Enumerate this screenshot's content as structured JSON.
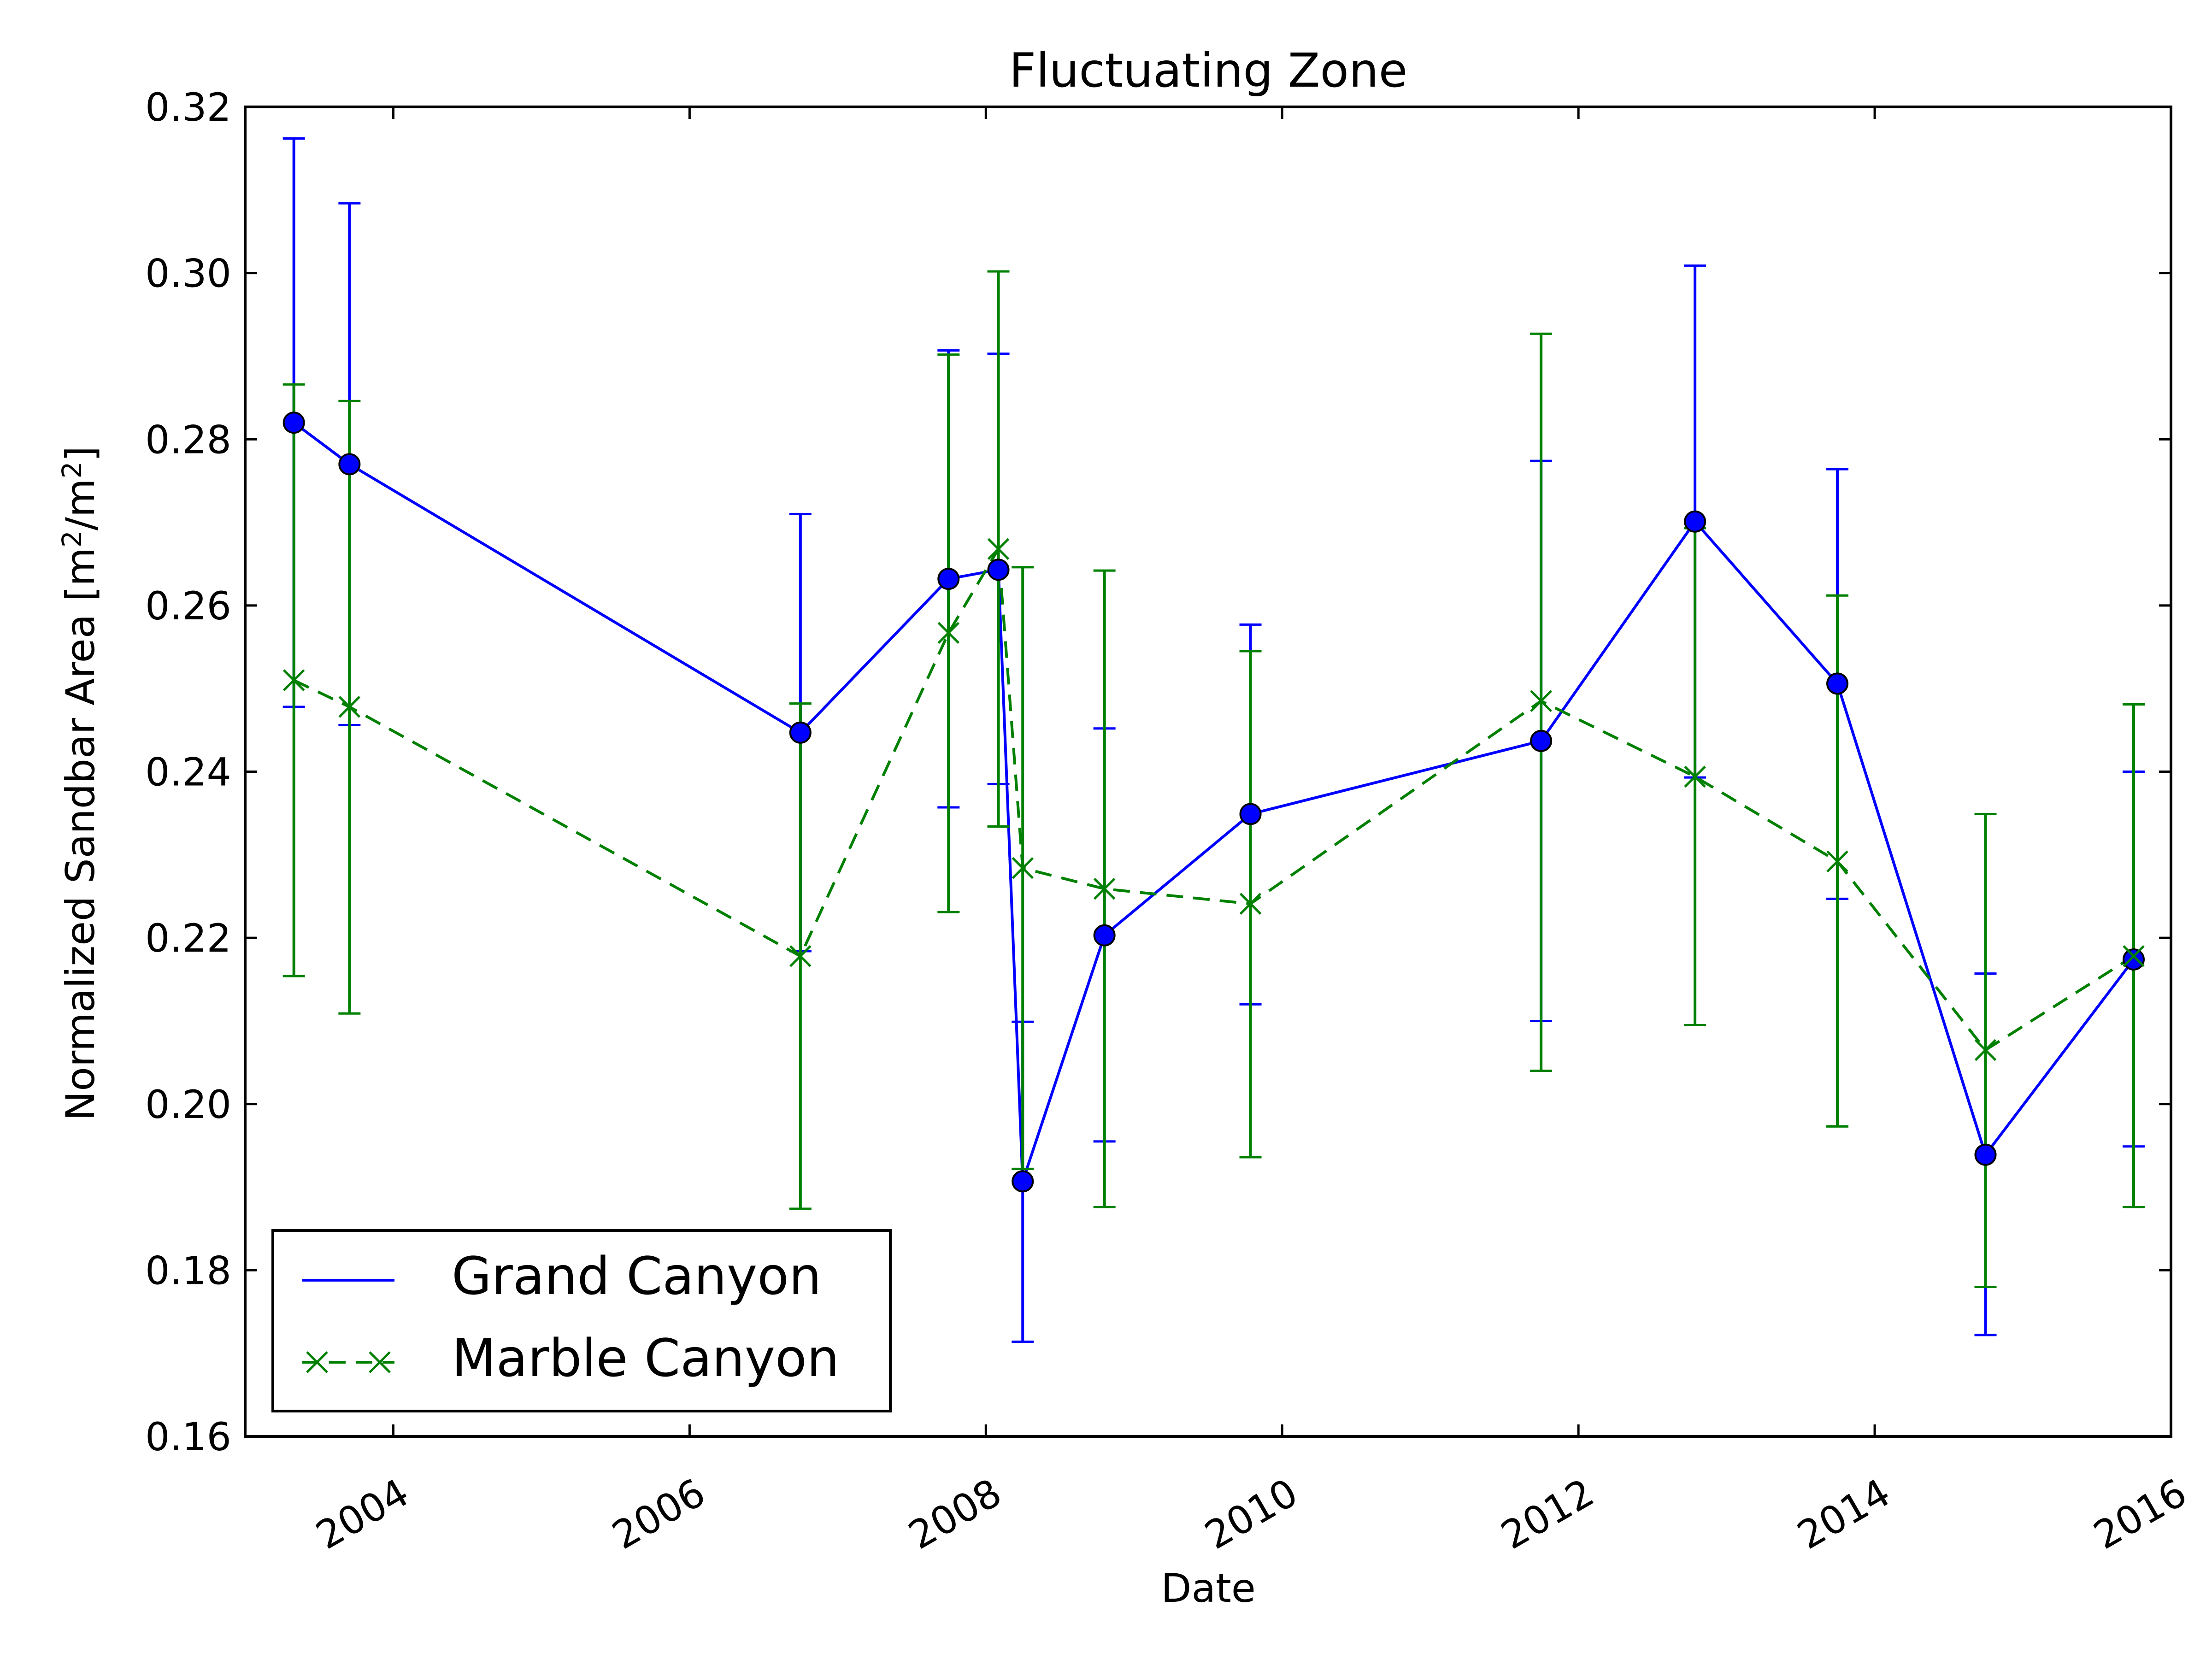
{
  "chart_data": {
    "type": "line",
    "title": "Fluctuating Zone",
    "xlabel": "Date",
    "ylabel": "Normalized Sandbar Area [m²/m²]",
    "ylabel_main": "Normalized Sandbar Area [m",
    "ylabel_sup": "2",
    "ylabel_mid": "/m",
    "ylabel_end": "]",
    "xlim": [
      "2003-01-01",
      "2016-01-01"
    ],
    "ylim": [
      0.16,
      0.32
    ],
    "x_ticks": [
      "2004",
      "2006",
      "2008",
      "2010",
      "2012",
      "2014",
      "2016"
    ],
    "y_ticks": [
      "0.16",
      "0.18",
      "0.20",
      "0.22",
      "0.24",
      "0.26",
      "0.28",
      "0.30",
      "0.32"
    ],
    "grid": false,
    "legend_position": "lower left",
    "series": [
      {
        "name": "Grand Canyon",
        "color": "#0000ff",
        "line_style": "solid",
        "marker": "circle",
        "points": [
          {
            "x": "2003-05-01",
            "y": 0.282,
            "err_low": 0.2478,
            "err_high": 0.3162
          },
          {
            "x": "2003-09-15",
            "y": 0.277,
            "err_low": 0.2456,
            "err_high": 0.3084
          },
          {
            "x": "2006-10-01",
            "y": 0.2447,
            "err_low": 0.2184,
            "err_high": 0.271
          },
          {
            "x": "2007-10-01",
            "y": 0.2632,
            "err_low": 0.2357,
            "err_high": 0.2907
          },
          {
            "x": "2008-02-01",
            "y": 0.2643,
            "err_low": 0.2385,
            "err_high": 0.2903
          },
          {
            "x": "2008-04-01",
            "y": 0.1907,
            "err_low": 0.1714,
            "err_high": 0.2099
          },
          {
            "x": "2008-10-20",
            "y": 0.2203,
            "err_low": 0.1955,
            "err_high": 0.2452
          },
          {
            "x": "2009-10-15",
            "y": 0.2349,
            "err_low": 0.212,
            "err_high": 0.2577
          },
          {
            "x": "2011-10-01",
            "y": 0.2437,
            "err_low": 0.21,
            "err_high": 0.2774
          },
          {
            "x": "2012-10-15",
            "y": 0.2701,
            "err_low": 0.2393,
            "err_high": 0.3009
          },
          {
            "x": "2013-10-01",
            "y": 0.2506,
            "err_low": 0.2247,
            "err_high": 0.2764
          },
          {
            "x": "2014-10-01",
            "y": 0.1939,
            "err_low": 0.1722,
            "err_high": 0.2157
          },
          {
            "x": "2015-10-01",
            "y": 0.2174,
            "err_low": 0.1949,
            "err_high": 0.24
          }
        ]
      },
      {
        "name": "Marble Canyon",
        "color": "#008000",
        "line_style": "dashed",
        "marker": "x",
        "points": [
          {
            "x": "2003-05-01",
            "y": 0.251,
            "err_low": 0.2154,
            "err_high": 0.2866
          },
          {
            "x": "2003-09-15",
            "y": 0.2478,
            "err_low": 0.2109,
            "err_high": 0.2846
          },
          {
            "x": "2006-10-01",
            "y": 0.2178,
            "err_low": 0.1874,
            "err_high": 0.2482
          },
          {
            "x": "2007-10-01",
            "y": 0.2567,
            "err_low": 0.2231,
            "err_high": 0.2902
          },
          {
            "x": "2008-02-01",
            "y": 0.2668,
            "err_low": 0.2334,
            "err_high": 0.3002
          },
          {
            "x": "2008-04-01",
            "y": 0.2284,
            "err_low": 0.1922,
            "err_high": 0.2646
          },
          {
            "x": "2008-10-20",
            "y": 0.2259,
            "err_low": 0.1876,
            "err_high": 0.2642
          },
          {
            "x": "2009-10-15",
            "y": 0.2241,
            "err_low": 0.1936,
            "err_high": 0.2545
          },
          {
            "x": "2011-10-01",
            "y": 0.2485,
            "err_low": 0.204,
            "err_high": 0.2927
          },
          {
            "x": "2012-10-15",
            "y": 0.2394,
            "err_low": 0.2095,
            "err_high": 0.2693
          },
          {
            "x": "2013-10-01",
            "y": 0.2292,
            "err_low": 0.1973,
            "err_high": 0.2612
          },
          {
            "x": "2014-10-01",
            "y": 0.2065,
            "err_low": 0.178,
            "err_high": 0.2349
          },
          {
            "x": "2015-10-01",
            "y": 0.2178,
            "err_low": 0.1876,
            "err_high": 0.2481
          }
        ]
      }
    ]
  }
}
